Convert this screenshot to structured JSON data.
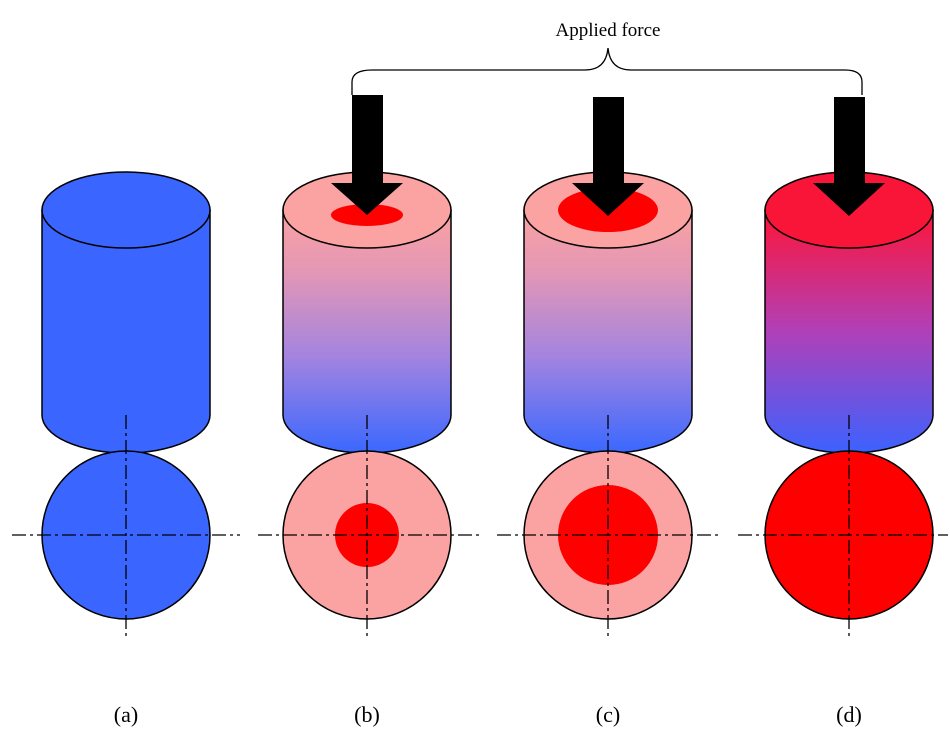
{
  "annotation": "Applied force",
  "panels": [
    {
      "label": "(a)"
    },
    {
      "label": "(b)"
    },
    {
      "label": "(c)"
    },
    {
      "label": "(d)"
    }
  ]
}
